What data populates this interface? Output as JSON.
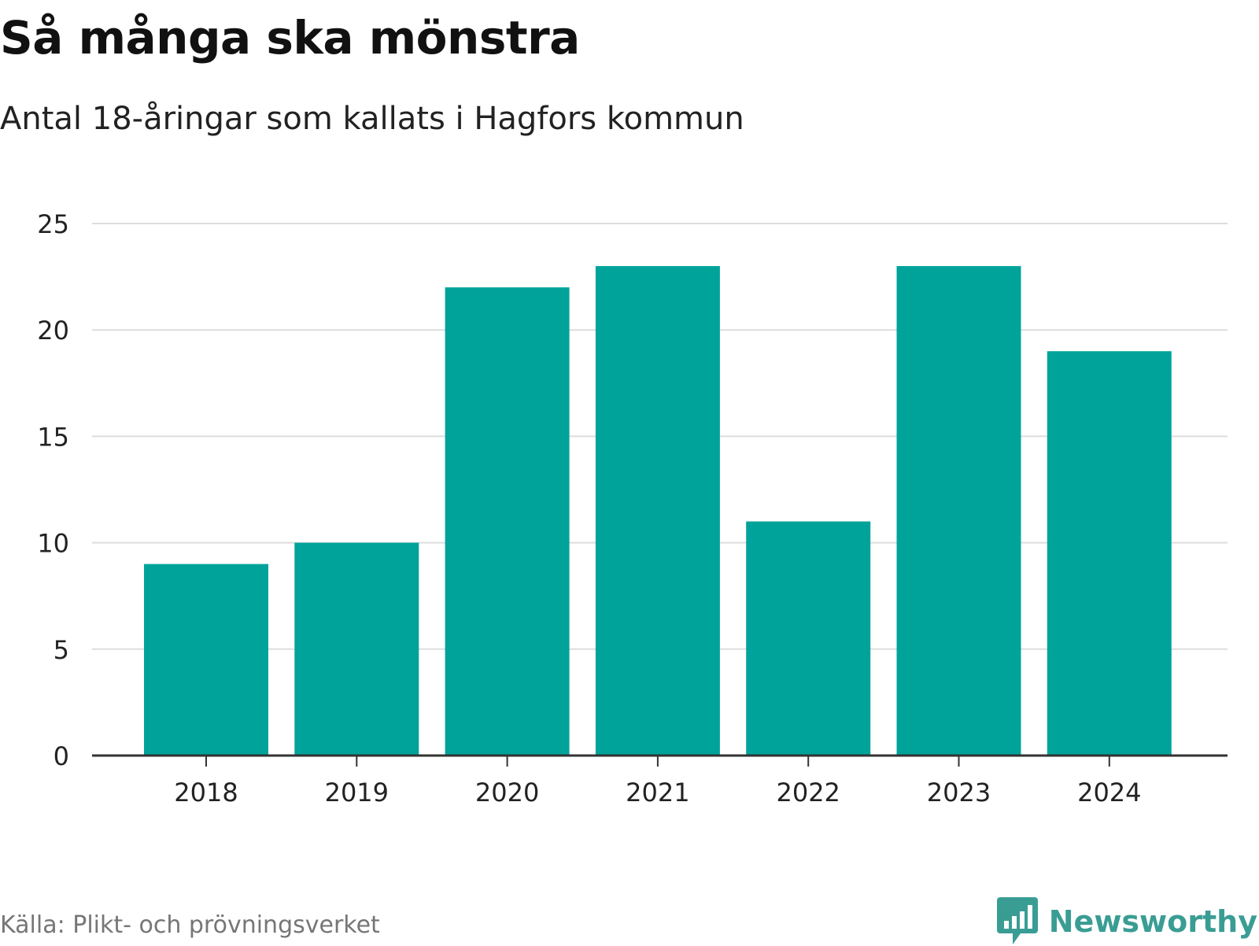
{
  "chart_data": {
    "type": "bar",
    "title": "Så många ska mönstra",
    "subtitle": "Antal 18-åringar som kallats i Hagfors kommun",
    "categories": [
      "2018",
      "2019",
      "2020",
      "2021",
      "2022",
      "2023",
      "2024"
    ],
    "values": [
      9,
      10,
      22,
      23,
      11,
      23,
      19
    ],
    "ylim": [
      0,
      25
    ],
    "yticks": [
      "0",
      "5",
      "10",
      "15",
      "20",
      "25"
    ],
    "xlabel": "",
    "ylabel": "",
    "grid": true,
    "colors": {
      "bar": "#00a39a",
      "grid": "#dddddd",
      "axis": "#333333"
    },
    "source": "Källa: Plikt- och prövningsverket"
  },
  "branding": {
    "name": "Newsworthy",
    "logo_icon": "bar-chart-speech-bubble-icon",
    "color": "#3a9d94"
  }
}
